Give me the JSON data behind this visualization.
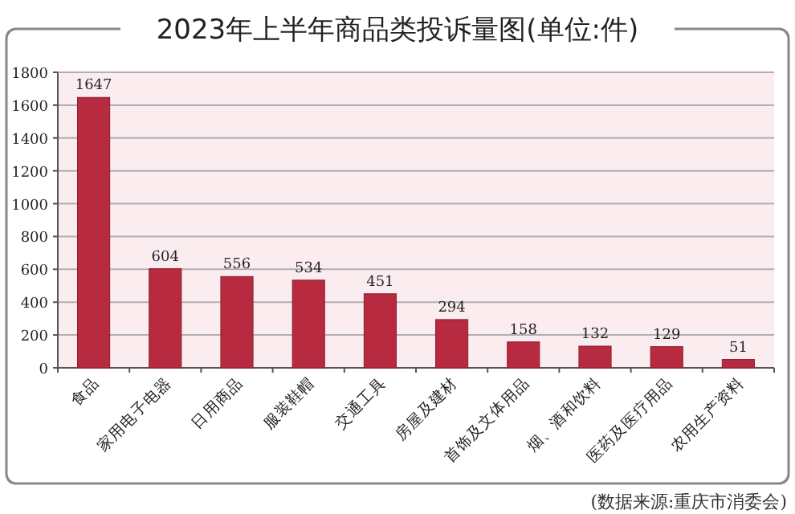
{
  "chart_data": {
    "type": "bar",
    "title": "2023年上半年商品类投诉量图(单位:件)",
    "categories": [
      "食品",
      "家用电子电器",
      "日用商品",
      "服装鞋帽",
      "交通工具",
      "房屋及建材",
      "首饰及文体用品",
      "烟、酒和饮料",
      "医药及医疗用品",
      "农用生产资料"
    ],
    "values": [
      1647,
      604,
      556,
      534,
      451,
      294,
      158,
      132,
      129,
      51
    ],
    "color": "#b72a40",
    "ylim": [
      0,
      1800
    ],
    "yticks": [
      0,
      200,
      400,
      600,
      800,
      1000,
      1200,
      1400,
      1600,
      1800
    ],
    "grid": "y",
    "data_labels": true,
    "annotations": [
      "(数据来源:重庆市消委会)"
    ]
  }
}
